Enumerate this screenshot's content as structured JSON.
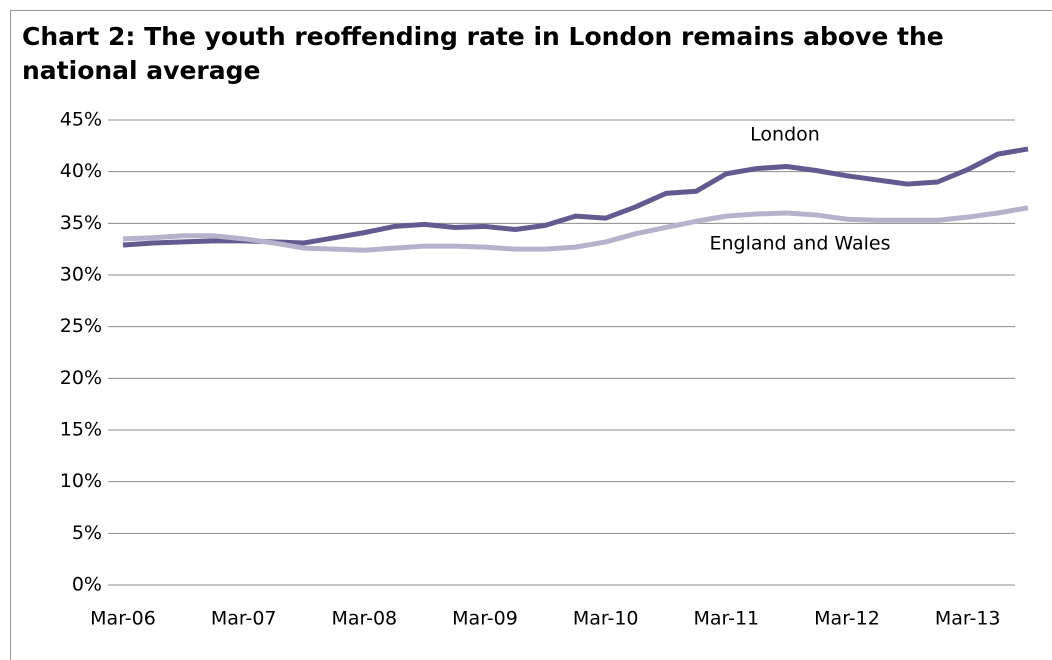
{
  "chart_data": {
    "type": "line",
    "title": "Chart 2: The youth reoffending rate in London remains above the national average",
    "categories": [
      "Mar-06",
      null,
      null,
      null,
      "Mar-07",
      null,
      null,
      null,
      "Mar-08",
      null,
      null,
      null,
      "Mar-09",
      null,
      null,
      null,
      "Mar-10",
      null,
      null,
      null,
      "Mar-11",
      null,
      null,
      null,
      "Mar-12",
      null,
      null,
      null,
      "Mar-13",
      null,
      null
    ],
    "series": [
      {
        "name": "London",
        "color": "#635b8f",
        "values": [
          32.9,
          33.1,
          33.2,
          33.3,
          33.3,
          33.2,
          33.1,
          33.6,
          34.1,
          34.7,
          34.9,
          34.6,
          34.7,
          34.4,
          34.8,
          35.7,
          35.5,
          36.6,
          37.9,
          38.1,
          39.8,
          40.3,
          40.5,
          40.1,
          39.6,
          39.2,
          38.8,
          39.0,
          40.2,
          41.7,
          42.2
        ]
      },
      {
        "name": "England and Wales",
        "color": "#b5b2cc",
        "values": [
          33.5,
          33.6,
          33.8,
          33.8,
          33.5,
          33.1,
          32.6,
          32.5,
          32.4,
          32.6,
          32.8,
          32.8,
          32.7,
          32.5,
          32.5,
          32.7,
          33.2,
          34.0,
          34.6,
          35.2,
          35.7,
          35.9,
          36.0,
          35.8,
          35.4,
          35.3,
          35.3,
          35.3,
          35.6,
          36.0,
          36.5
        ]
      }
    ],
    "ylim": [
      0,
      45
    ],
    "yticks": [
      {
        "value": 0,
        "label": "0%"
      },
      {
        "value": 5,
        "label": "5%"
      },
      {
        "value": 10,
        "label": "10%"
      },
      {
        "value": 15,
        "label": "15%"
      },
      {
        "value": 20,
        "label": "20%"
      },
      {
        "value": 25,
        "label": "25%"
      },
      {
        "value": 30,
        "label": "30%"
      },
      {
        "value": 35,
        "label": "35%"
      },
      {
        "value": 40,
        "label": "40%"
      },
      {
        "value": 45,
        "label": "45%"
      }
    ],
    "grid": true
  }
}
